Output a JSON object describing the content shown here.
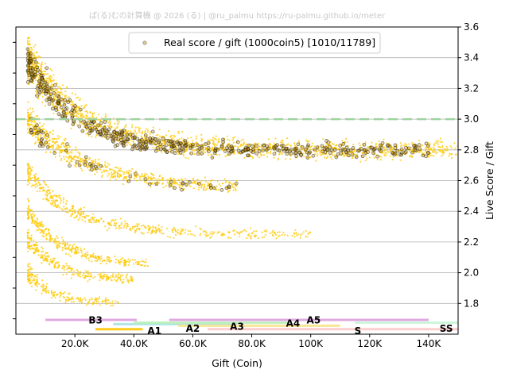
{
  "watermark": "ぱ(る)むの計算機 @ 2026 (る) | @ru_palmu  https://ru-palmu.github.io/meter",
  "chart_data": {
    "type": "scatter",
    "xlabel": "Gift (Coin)",
    "ylabel": "Live Score / Gift",
    "xlim": [
      0,
      150000
    ],
    "ylim": [
      1.6,
      3.6
    ],
    "x_ticks": [
      {
        "value": 20000,
        "label": "20.0K"
      },
      {
        "value": 40000,
        "label": "40.0K"
      },
      {
        "value": 60000,
        "label": "60.0K"
      },
      {
        "value": 80000,
        "label": "80.0K"
      },
      {
        "value": 100000,
        "label": "100K"
      },
      {
        "value": 120000,
        "label": "120K"
      },
      {
        "value": 140000,
        "label": "140K"
      }
    ],
    "y_ticks": [
      1.8,
      2.0,
      2.2,
      2.4,
      2.6,
      2.8,
      3.0,
      3.2,
      3.4,
      3.6
    ],
    "y_tick_labels": [
      "1.8",
      "2.0",
      "2.2",
      "2.4",
      "2.6",
      "2.8",
      "3.0",
      "3.2",
      "3.4",
      "3.6"
    ],
    "y_axis_side": "right",
    "grid": "horizontal",
    "reference_line": {
      "y": 3.0,
      "color": "#9fd39f",
      "style": "dashed"
    },
    "legend": {
      "label": "Real score / gift (1000coin5) [1010/11789]",
      "position": "top-center"
    },
    "series": [
      {
        "kind": "scatter",
        "color": "#ffc800",
        "clusters": [
          {
            "x_start": 4000,
            "x_end": 150000,
            "y_start": 3.4,
            "y_end": 2.8,
            "decay": 18000,
            "spread": 0.05,
            "weight": 5
          },
          {
            "x_start": 4000,
            "x_end": 75000,
            "y_start": 3.0,
            "y_end": 2.55,
            "decay": 20000,
            "spread": 0.03,
            "weight": 2
          },
          {
            "x_start": 4000,
            "x_end": 100000,
            "y_start": 2.65,
            "y_end": 2.25,
            "decay": 16000,
            "spread": 0.025,
            "weight": 1.5
          },
          {
            "x_start": 4000,
            "x_end": 45000,
            "y_start": 2.4,
            "y_end": 2.05,
            "decay": 12000,
            "spread": 0.02,
            "weight": 1
          },
          {
            "x_start": 4000,
            "x_end": 40000,
            "y_start": 2.22,
            "y_end": 1.95,
            "decay": 10000,
            "spread": 0.02,
            "weight": 0.8
          },
          {
            "x_start": 4000,
            "x_end": 35000,
            "y_start": 2.0,
            "y_end": 1.8,
            "decay": 8000,
            "spread": 0.02,
            "weight": 0.6
          }
        ]
      },
      {
        "kind": "real",
        "color": "#000000",
        "clusters": [
          {
            "x_start": 4000,
            "x_end": 140000,
            "y_start": 3.38,
            "y_end": 2.8,
            "decay": 16000,
            "spread": 0.04,
            "weight": 4
          },
          {
            "x_start": 5000,
            "x_end": 75000,
            "y_start": 2.95,
            "y_end": 2.55,
            "decay": 20000,
            "spread": 0.03,
            "weight": 0.5
          }
        ]
      }
    ],
    "rank_bands": [
      {
        "label": "B3",
        "x_start": 10000,
        "x_end": 41000,
        "color": "#dda0dd",
        "row": 0,
        "label_x": 27000,
        "label_y": 1.69
      },
      {
        "label": "A1",
        "x_start": 27000,
        "x_end": 43000,
        "color": "#ffc400",
        "row": 3,
        "label_x": 47000,
        "label_y": 1.62
      },
      {
        "label": "A2",
        "x_start": 33000,
        "x_end": 75000,
        "color": "#a6e3e3",
        "row": 2,
        "label_x": 60000,
        "label_y": 1.635
      },
      {
        "label": "A3",
        "x_start": 40000,
        "x_end": 93000,
        "color": "#b9f0b9",
        "row": 1,
        "label_x": 75000,
        "label_y": 1.65
      },
      {
        "label": "A4",
        "x_start": 55000,
        "x_end": 110000,
        "color": "#f7e38a",
        "row": 4,
        "label_x": 94000,
        "label_y": 1.67
      },
      {
        "label": "A5",
        "x_start": 52000,
        "x_end": 140000,
        "color": "#dda0dd",
        "row": 0,
        "label_x": 101000,
        "label_y": 1.69
      },
      {
        "label": "S",
        "x_start": 65000,
        "x_end": 150000,
        "color": "#ffc9c9",
        "row": 3,
        "label_x": 116000,
        "label_y": 1.62
      },
      {
        "label": "SS",
        "x_start": 115000,
        "x_end": 150000,
        "color": "#c8f5d8",
        "row": 1,
        "label_x": 146000,
        "label_y": 1.635
      }
    ]
  }
}
